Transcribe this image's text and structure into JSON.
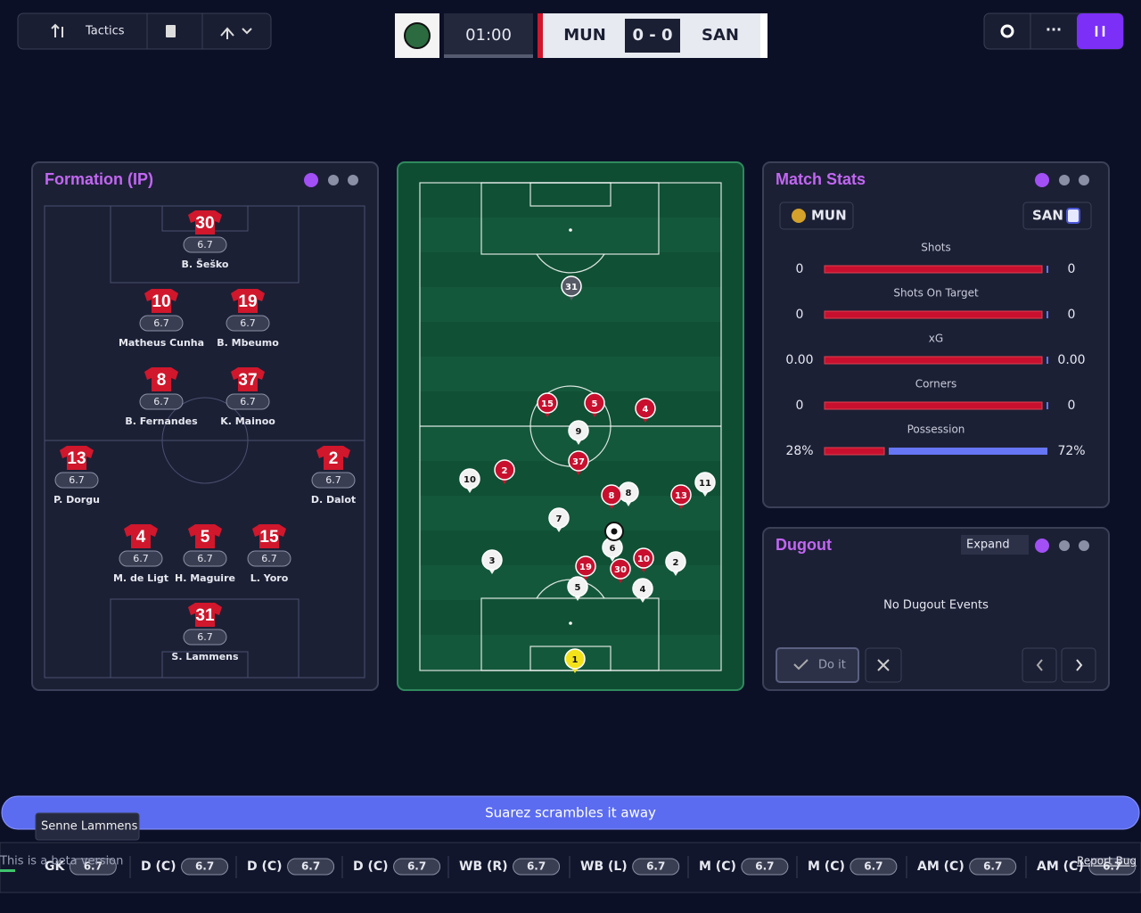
{
  "toolbar": {
    "tactics": "Tactics"
  },
  "scoreboard": {
    "clock": "01:00",
    "home": "MUN",
    "score": "0 - 0",
    "away": "SAN"
  },
  "formation": {
    "title": "Formation (IP)",
    "players": [
      {
        "number": "30",
        "rating": "6.7",
        "name": "B. Šeško"
      },
      {
        "number": "10",
        "rating": "6.7",
        "name": "Matheus Cunha"
      },
      {
        "number": "19",
        "rating": "6.7",
        "name": "B. Mbeumo"
      },
      {
        "number": "8",
        "rating": "6.7",
        "name": "B. Fernandes"
      },
      {
        "number": "37",
        "rating": "6.7",
        "name": "K. Mainoo"
      },
      {
        "number": "13",
        "rating": "6.7",
        "name": "P. Dorgu"
      },
      {
        "number": "2",
        "rating": "6.7",
        "name": "D. Dalot"
      },
      {
        "number": "4",
        "rating": "6.7",
        "name": "M. de Ligt"
      },
      {
        "number": "5",
        "rating": "6.7",
        "name": "H. Maguire"
      },
      {
        "number": "15",
        "rating": "6.7",
        "name": "L. Yoro"
      },
      {
        "number": "31",
        "rating": "6.7",
        "name": "S. Lammens"
      }
    ]
  },
  "pitch": {
    "home": [
      "15",
      "5",
      "4",
      "2",
      "37",
      "8",
      "13",
      "19",
      "30",
      "10"
    ],
    "home_keeper": "31",
    "away": [
      "9",
      "10",
      "8",
      "11",
      "7",
      "6",
      "3",
      "2",
      "5",
      "4"
    ],
    "away_keeper": "1"
  },
  "match_stats": {
    "title": "Match Stats",
    "home": "MUN",
    "away": "SAN",
    "rows": [
      {
        "label": "Shots",
        "home": "0",
        "away": "0"
      },
      {
        "label": "Shots On Target",
        "home": "0",
        "away": "0"
      },
      {
        "label": "xG",
        "home": "0.00",
        "away": "0.00"
      },
      {
        "label": "Corners",
        "home": "0",
        "away": "0"
      },
      {
        "label": "Possession",
        "home": "28%",
        "away": "72%"
      }
    ]
  },
  "dugout": {
    "title": "Dugout",
    "expand": "Expand",
    "empty": "No Dugout Events",
    "do_it": "Do it"
  },
  "commentary": "Suarez scrambles it away",
  "tooltip": "Senne Lammens",
  "footer": {
    "beta": "This is a beta version",
    "report": "Report Bug",
    "positions": [
      {
        "pos": "GK",
        "rating": "6.7"
      },
      {
        "pos": "D (C)",
        "rating": "6.7"
      },
      {
        "pos": "D (C)",
        "rating": "6.7"
      },
      {
        "pos": "D (C)",
        "rating": "6.7"
      },
      {
        "pos": "WB (R)",
        "rating": "6.7"
      },
      {
        "pos": "WB (L)",
        "rating": "6.7"
      },
      {
        "pos": "M (C)",
        "rating": "6.7"
      },
      {
        "pos": "M (C)",
        "rating": "6.7"
      },
      {
        "pos": "AM (C)",
        "rating": "6.7"
      },
      {
        "pos": "AM (C)",
        "rating": "6.7"
      }
    ]
  }
}
